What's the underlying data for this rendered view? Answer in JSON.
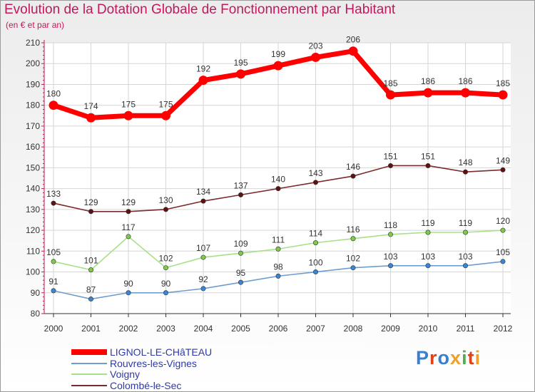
{
  "title": "Evolution de la Dotation Globale de Fonctionnement par Habitant",
  "subtitle": "(en € et par an)",
  "logo": {
    "text": "Proxiti",
    "colors": [
      "#3b7fd0",
      "#e0421b",
      "#3b7fd0",
      "#f0a02a",
      "#4caf50",
      "#e0421b",
      "#f0a02a"
    ]
  },
  "chart_data": {
    "type": "line",
    "title": "Evolution de la Dotation Globale de Fonctionnement par Habitant",
    "subtitle": "(en € et par an)",
    "xlabel": "",
    "ylabel": "",
    "categories": [
      "2000",
      "2001",
      "2002",
      "2003",
      "2004",
      "2005",
      "2006",
      "2007",
      "2008",
      "2009",
      "2010",
      "2011",
      "2012"
    ],
    "ylim": [
      80,
      210
    ],
    "yticks": [
      80,
      90,
      100,
      110,
      120,
      130,
      140,
      150,
      160,
      170,
      180,
      190,
      200,
      210
    ],
    "grid": true,
    "legend_position": "bottom-left",
    "series": [
      {
        "name": "LIGNOL-LE-CHâTEAU",
        "color": "#ff0000",
        "emphasis": true,
        "values": [
          180,
          174,
          175,
          175,
          192,
          195,
          199,
          203,
          206,
          185,
          186,
          186,
          185
        ]
      },
      {
        "name": "Rouvres-les-Vignes",
        "color": "#6e9ecf",
        "marker": "#3a86d4",
        "values": [
          91,
          87,
          90,
          90,
          92,
          95,
          98,
          100,
          102,
          103,
          103,
          103,
          105
        ]
      },
      {
        "name": "Voigny",
        "color": "#a8e089",
        "marker": "#7ecb4a",
        "values": [
          105,
          101,
          117,
          102,
          107,
          109,
          111,
          114,
          116,
          118,
          119,
          119,
          120
        ]
      },
      {
        "name": "Colombé-le-Sec",
        "color": "#7a2b2b",
        "marker": "#5c1212",
        "values": [
          133,
          129,
          129,
          130,
          134,
          137,
          140,
          143,
          146,
          151,
          151,
          148,
          149
        ]
      }
    ]
  }
}
